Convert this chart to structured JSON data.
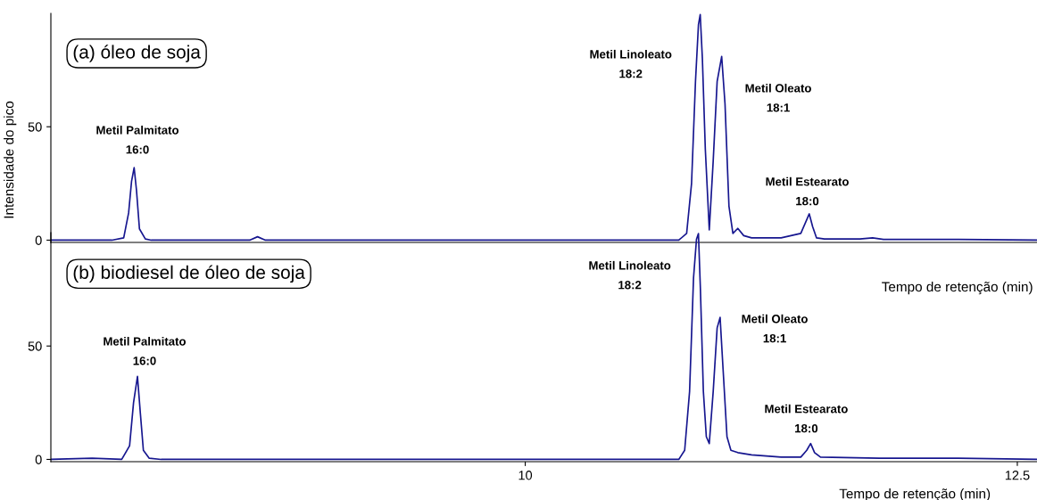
{
  "chart_data": [
    {
      "type": "line",
      "title": "(a) óleo de soja",
      "xlabel": "Tempo de retenção (min)",
      "ylabel": "Intensidade do pico",
      "xlim": [
        7.59,
        12.6
      ],
      "ylim": [
        -1,
        100
      ],
      "yticks": [
        0,
        50
      ],
      "tick_labels": "y",
      "grid": false,
      "x": [
        7.59,
        7.9,
        7.96,
        7.985,
        8.0,
        8.013,
        8.025,
        8.04,
        8.07,
        8.1,
        8.6,
        8.64,
        8.68,
        9.0,
        9.5,
        10.0,
        10.5,
        10.78,
        10.82,
        10.845,
        10.865,
        10.88,
        10.889,
        10.9,
        10.915,
        10.935,
        10.955,
        10.975,
        10.998,
        11.015,
        11.035,
        11.055,
        11.08,
        11.11,
        11.15,
        11.3,
        11.4,
        11.425,
        11.443,
        11.46,
        11.48,
        11.52,
        11.7,
        11.765,
        11.82,
        12.2,
        12.6
      ],
      "series": [
        {
          "color": "#16168f",
          "values": [
            0,
            0,
            1,
            12,
            26,
            32,
            22,
            5,
            0.5,
            0,
            0,
            1.5,
            0,
            0,
            0,
            0,
            0,
            0,
            3,
            25,
            70,
            95,
            99.5,
            80,
            40,
            4.5,
            35,
            70,
            81,
            60,
            15,
            3,
            5.2,
            2,
            1,
            1,
            3,
            8,
            11.6,
            6,
            1,
            0.5,
            0.5,
            1,
            0.3,
            0.3,
            0
          ]
        }
      ],
      "annotations": [
        "Metil Palmitato\n16:0",
        "Metil Linoleato\n18:2",
        "Metil Oleato\n18:1",
        "Metil Estearato\n18:0"
      ]
    },
    {
      "type": "line",
      "title": "(b) biodiesel de óleo de soja",
      "xlabel": "Tempo de retenção (min)",
      "xlim": [
        7.59,
        12.6
      ],
      "ylim": [
        -1,
        100
      ],
      "yticks": [
        0,
        50
      ],
      "xticks": [
        10,
        12.5
      ],
      "grid": false,
      "x": [
        7.59,
        7.8,
        7.95,
        7.99,
        8.01,
        8.03,
        8.045,
        8.06,
        8.09,
        8.15,
        9.0,
        10.0,
        10.5,
        10.78,
        10.81,
        10.835,
        10.855,
        10.87,
        10.88,
        10.89,
        10.905,
        10.92,
        10.935,
        10.955,
        10.975,
        10.99,
        11.005,
        11.025,
        11.045,
        11.08,
        11.15,
        11.3,
        11.4,
        11.43,
        11.45,
        11.47,
        11.5,
        11.8,
        12.2,
        12.6
      ],
      "series": [
        {
          "color": "#16168f",
          "values": [
            0,
            0.5,
            0,
            6,
            25,
            36.6,
            20,
            4,
            0.5,
            0,
            0,
            0,
            0,
            0,
            4,
            30,
            80,
            97,
            99.6,
            75,
            30,
            10,
            7,
            30,
            58,
            62.6,
            40,
            10,
            4,
            3,
            2,
            1,
            1,
            4,
            7,
            3,
            1,
            0.5,
            0.5,
            0
          ]
        }
      ],
      "annotations": [
        "Metil Palmitato\n16:0",
        "Metil Linoleato\n18:2",
        "Metil Oleato\n18:1",
        "Metil Estearato\n18:0"
      ]
    }
  ]
}
